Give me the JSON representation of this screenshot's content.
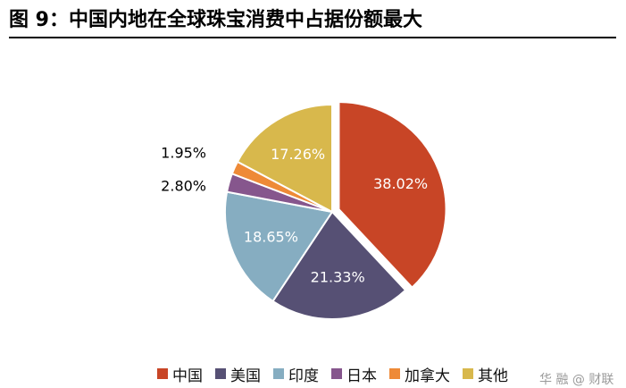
{
  "figure": {
    "title": "图 9：中国内地在全球珠宝消费中占据份额最大",
    "watermark": "华 融 @ 财联"
  },
  "chart_data": {
    "type": "pie",
    "title": "",
    "start_angle_deg": 0,
    "direction": "clockwise",
    "exploded": [
      "中国"
    ],
    "slices": [
      {
        "name": "中国",
        "value": 38.02,
        "label": "38.02%",
        "color": "#c84526",
        "label_color": "#ffffff"
      },
      {
        "name": "美国",
        "value": 21.33,
        "label": "21.33%",
        "color": "#565074",
        "label_color": "#ffffff"
      },
      {
        "name": "印度",
        "value": 18.65,
        "label": "18.65%",
        "color": "#86adc1",
        "label_color": "#ffffff"
      },
      {
        "name": "日本",
        "value": 2.8,
        "label": "2.80%",
        "color": "#86568d",
        "label_color": "#000000"
      },
      {
        "name": "加拿大",
        "value": 1.95,
        "label": "1.95%",
        "color": "#ee8a37",
        "label_color": "#000000"
      },
      {
        "name": "其他",
        "value": 17.26,
        "label": "17.26%",
        "color": "#d8b84c",
        "label_color": "#ffffff"
      }
    ],
    "legend_position": "bottom"
  }
}
